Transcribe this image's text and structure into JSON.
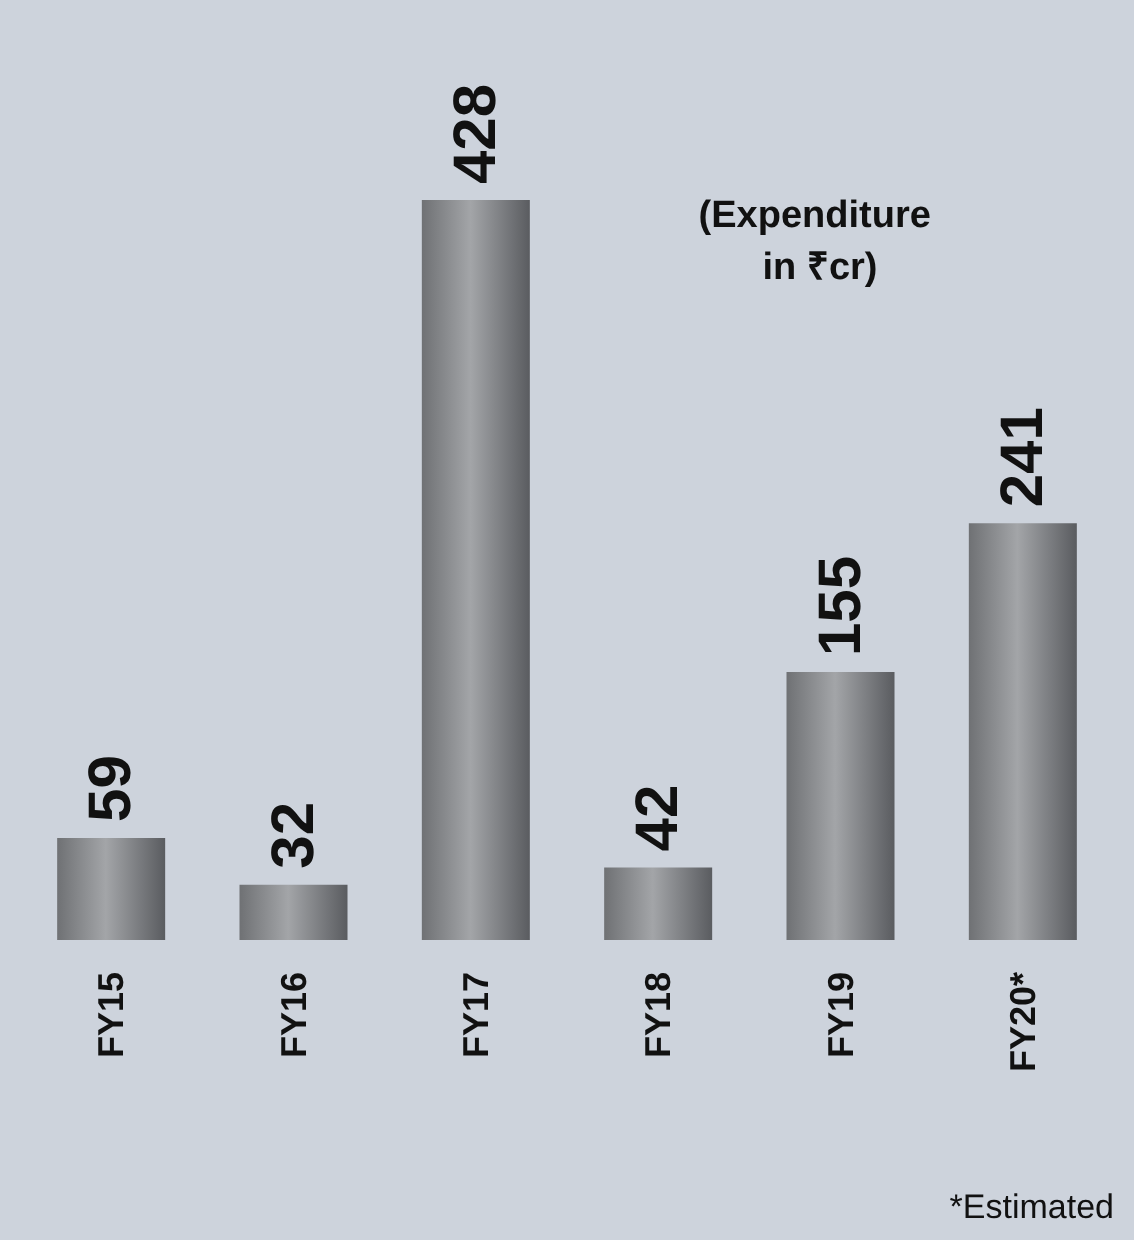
{
  "chart_data": {
    "type": "bar",
    "title": "(Expenditure in ₹cr)",
    "categories": [
      "FY15",
      "FY16",
      "FY17",
      "FY18",
      "FY19",
      "FY20*"
    ],
    "values": [
      59,
      32,
      428,
      42,
      155,
      241
    ],
    "color": "#a3a5a8",
    "data_labels": true,
    "annotations": [
      "*Estimated"
    ]
  }
}
